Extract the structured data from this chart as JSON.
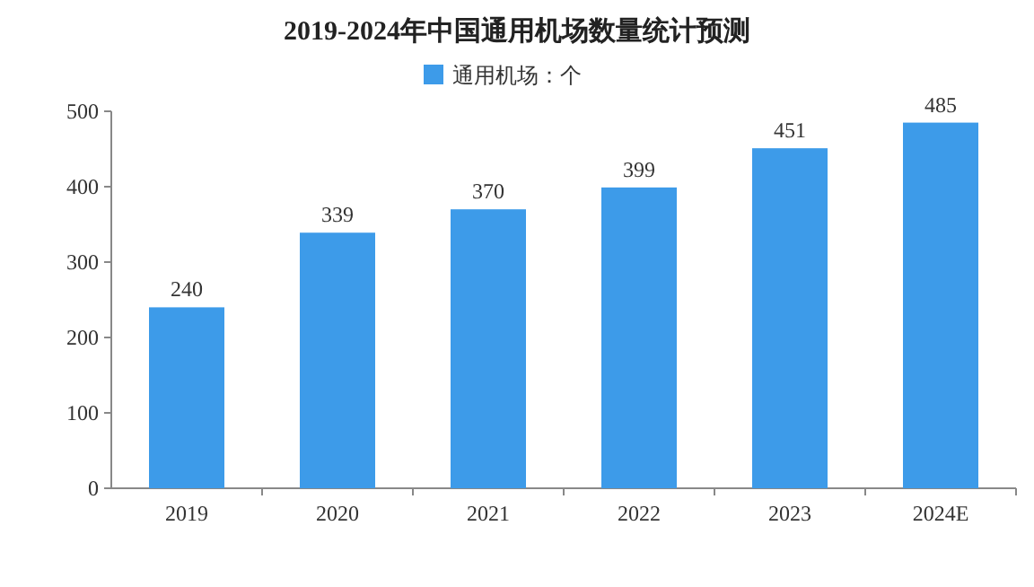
{
  "chart_data": {
    "type": "bar",
    "title": "2019-2024年中国通用机场数量统计预测",
    "categories": [
      "2019",
      "2020",
      "2021",
      "2022",
      "2023",
      "2024E"
    ],
    "series": [
      {
        "name": "通用机场：个",
        "color": "#3d9be9",
        "values": [
          240,
          339,
          370,
          399,
          451,
          485
        ]
      }
    ],
    "ylim": [
      0,
      500
    ],
    "yticks": [
      0,
      100,
      200,
      300,
      400,
      500
    ],
    "data_labels": true,
    "legend": "top"
  }
}
